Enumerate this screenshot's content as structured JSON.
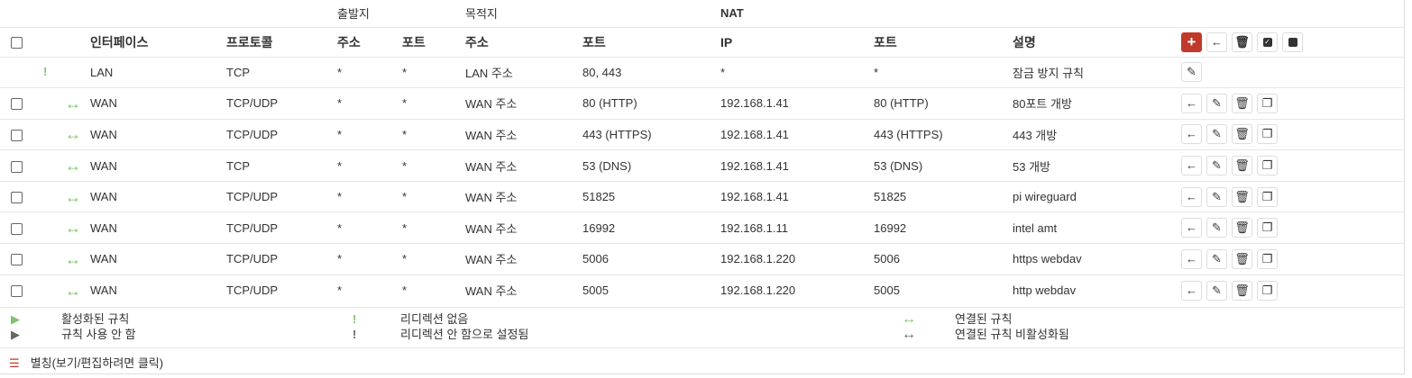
{
  "header": {
    "source": "출발지",
    "destination": "목적지",
    "nat": "NAT",
    "columns": [
      "인터페이스",
      "프로토콜",
      "주소",
      "포트",
      "주소",
      "포트",
      "IP",
      "포트",
      "설명"
    ]
  },
  "colors": {
    "accent": "#c0392b",
    "enabled": "#7fc36b",
    "disabled": "#666666"
  },
  "rows": [
    {
      "checkbox": false,
      "icon": "exclamation-icon",
      "interface": "LAN",
      "protocol": "TCP",
      "src_addr": "*",
      "src_port": "*",
      "dst_addr": "LAN 주소",
      "dst_port": "80, 443",
      "nat_ip": "*",
      "nat_port": "*",
      "description": "잠금 방지 규칙",
      "actions": [
        "edit"
      ]
    },
    {
      "checkbox": true,
      "icon": "linked-icon",
      "interface": "WAN",
      "protocol": "TCP/UDP",
      "src_addr": "*",
      "src_port": "*",
      "dst_addr": "WAN 주소",
      "dst_port": "80 (HTTP)",
      "nat_ip": "192.168.1.41",
      "nat_port": "80 (HTTP)",
      "description": "80포트 개방",
      "actions": [
        "move",
        "edit",
        "delete",
        "copy"
      ]
    },
    {
      "checkbox": true,
      "icon": "linked-icon",
      "interface": "WAN",
      "protocol": "TCP/UDP",
      "src_addr": "*",
      "src_port": "*",
      "dst_addr": "WAN 주소",
      "dst_port": "443 (HTTPS)",
      "nat_ip": "192.168.1.41",
      "nat_port": "443 (HTTPS)",
      "description": "443 개방",
      "actions": [
        "move",
        "edit",
        "delete",
        "copy"
      ]
    },
    {
      "checkbox": true,
      "icon": "linked-icon",
      "interface": "WAN",
      "protocol": "TCP",
      "src_addr": "*",
      "src_port": "*",
      "dst_addr": "WAN 주소",
      "dst_port": "53 (DNS)",
      "nat_ip": "192.168.1.41",
      "nat_port": "53 (DNS)",
      "description": "53 개방",
      "actions": [
        "move",
        "edit",
        "delete",
        "copy"
      ]
    },
    {
      "checkbox": true,
      "icon": "linked-icon",
      "interface": "WAN",
      "protocol": "TCP/UDP",
      "src_addr": "*",
      "src_port": "*",
      "dst_addr": "WAN 주소",
      "dst_port": "51825",
      "nat_ip": "192.168.1.41",
      "nat_port": "51825",
      "description": "pi wireguard",
      "actions": [
        "move",
        "edit",
        "delete",
        "copy"
      ]
    },
    {
      "checkbox": true,
      "icon": "linked-icon",
      "interface": "WAN",
      "protocol": "TCP/UDP",
      "src_addr": "*",
      "src_port": "*",
      "dst_addr": "WAN 주소",
      "dst_port": "16992",
      "nat_ip": "192.168.1.11",
      "nat_port": "16992",
      "description": "intel amt",
      "actions": [
        "move",
        "edit",
        "delete",
        "copy"
      ]
    },
    {
      "checkbox": true,
      "icon": "linked-icon",
      "interface": "WAN",
      "protocol": "TCP/UDP",
      "src_addr": "*",
      "src_port": "*",
      "dst_addr": "WAN 주소",
      "dst_port": "5006",
      "nat_ip": "192.168.1.220",
      "nat_port": "5006",
      "description": "https webdav",
      "actions": [
        "move",
        "edit",
        "delete",
        "copy"
      ]
    },
    {
      "checkbox": true,
      "icon": "linked-icon",
      "interface": "WAN",
      "protocol": "TCP/UDP",
      "src_addr": "*",
      "src_port": "*",
      "dst_addr": "WAN 주소",
      "dst_port": "5005",
      "nat_ip": "192.168.1.220",
      "nat_port": "5005",
      "description": "http webdav",
      "actions": [
        "move",
        "edit",
        "delete",
        "copy"
      ]
    }
  ],
  "legend": {
    "enabled_rule": "활성화된 규칙",
    "disabled_rule": "규칙 사용 안 함",
    "no_redirect": "리디렉션 없음",
    "no_redirect_disabled": "리디렉션 안 함으로 설정됨",
    "linked_rule": "연결된 규칙",
    "linked_rule_disabled": "연결된 규칙 비활성화됨"
  },
  "alias": {
    "label": "별칭(보기/편집하려면 클릭)"
  }
}
